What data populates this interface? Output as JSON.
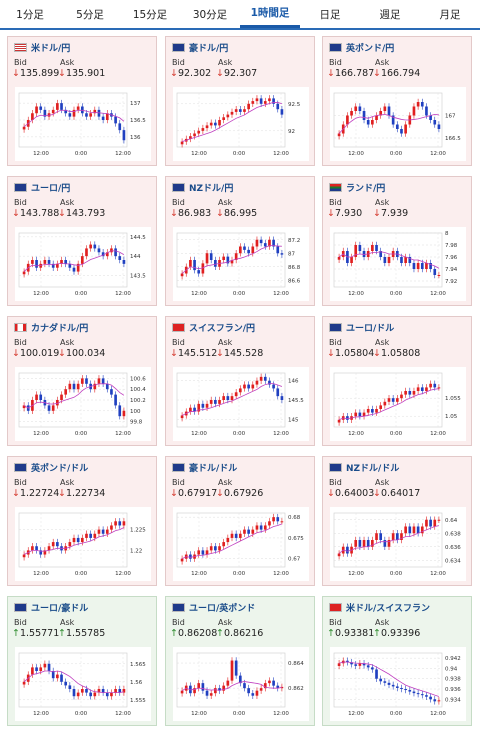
{
  "tabs": [
    {
      "label": "1分足"
    },
    {
      "label": "5分足"
    },
    {
      "label": "15分足"
    },
    {
      "label": "30分足"
    },
    {
      "label": "1時間足",
      "active": true
    },
    {
      "label": "日足"
    },
    {
      "label": "週足"
    },
    {
      "label": "月足"
    }
  ],
  "bid_label": "Bid",
  "ask_label": "Ask",
  "colors": {
    "down": "#d43a2f",
    "up": "#2c8b2c",
    "bull_candle": "#e02020",
    "bear_candle": "#2040c0",
    "ma_line": "#c040c0"
  },
  "pairs": [
    {
      "name": "米ドル/円",
      "dir": "down",
      "bid": "135.899",
      "ask": "135.901",
      "flag": "us-flag",
      "yticks": [
        "137",
        "136.5",
        "136"
      ],
      "yrange": [
        135.7,
        137.3
      ],
      "closes": [
        136.3,
        136.5,
        136.7,
        136.9,
        136.8,
        136.6,
        136.7,
        136.8,
        137.0,
        136.8,
        136.7,
        136.6,
        136.8,
        136.9,
        136.7,
        136.6,
        136.7,
        136.8,
        136.6,
        136.5,
        136.7,
        136.6,
        136.4,
        136.2,
        135.9
      ]
    },
    {
      "name": "豪ドル/円",
      "dir": "down",
      "bid": "92.302",
      "ask": "92.307",
      "flag": "au-flag",
      "yticks": [
        "92.5",
        "92"
      ],
      "yrange": [
        91.7,
        92.7
      ],
      "closes": [
        91.8,
        91.85,
        91.9,
        91.95,
        92.0,
        92.05,
        92.1,
        92.15,
        92.1,
        92.2,
        92.25,
        92.3,
        92.35,
        92.4,
        92.35,
        92.4,
        92.5,
        92.55,
        92.6,
        92.5,
        92.55,
        92.6,
        92.5,
        92.4,
        92.3
      ]
    },
    {
      "name": "英ポンド/円",
      "dir": "down",
      "bid": "166.787",
      "ask": "166.794",
      "flag": "gb-flag",
      "yticks": [
        "167",
        "166.5"
      ],
      "yrange": [
        166.3,
        167.5
      ],
      "closes": [
        166.6,
        166.8,
        167.0,
        167.1,
        167.2,
        167.1,
        166.9,
        166.8,
        166.9,
        167.0,
        167.1,
        167.2,
        167.0,
        166.8,
        166.7,
        166.6,
        166.8,
        167.0,
        167.2,
        167.3,
        167.2,
        167.0,
        166.9,
        166.8,
        166.7
      ]
    },
    {
      "name": "ユーロ/円",
      "dir": "down",
      "bid": "143.788",
      "ask": "143.793",
      "flag": "eu-flag",
      "yticks": [
        "144.5",
        "144",
        "143.5"
      ],
      "yrange": [
        143.2,
        144.6
      ],
      "closes": [
        143.6,
        143.8,
        143.9,
        143.7,
        143.8,
        143.9,
        143.8,
        143.7,
        143.8,
        143.9,
        143.8,
        143.7,
        143.6,
        143.8,
        144.0,
        144.2,
        144.3,
        144.2,
        144.1,
        144.0,
        144.1,
        144.2,
        144.0,
        143.9,
        143.8
      ]
    },
    {
      "name": "NZドル/円",
      "dir": "down",
      "bid": "86.983",
      "ask": "86.995",
      "flag": "nz-flag",
      "yticks": [
        "87.2",
        "87",
        "86.8",
        "86.6"
      ],
      "yrange": [
        86.5,
        87.3
      ],
      "closes": [
        86.7,
        86.8,
        86.9,
        86.75,
        86.7,
        86.85,
        87.0,
        86.9,
        86.8,
        86.9,
        86.95,
        86.85,
        86.9,
        87.0,
        87.1,
        87.05,
        87.0,
        87.1,
        87.2,
        87.15,
        87.1,
        87.2,
        87.1,
        87.0,
        86.98
      ]
    },
    {
      "name": "ランド/円",
      "dir": "down",
      "bid": "7.930",
      "ask": "7.939",
      "flag": "za-flag",
      "yticks": [
        "8",
        "7.98",
        "7.96",
        "7.94",
        "7.92"
      ],
      "yrange": [
        7.91,
        8.0
      ],
      "closes": [
        7.96,
        7.97,
        7.95,
        7.96,
        7.98,
        7.97,
        7.96,
        7.97,
        7.98,
        7.97,
        7.96,
        7.95,
        7.96,
        7.97,
        7.96,
        7.95,
        7.96,
        7.95,
        7.94,
        7.95,
        7.94,
        7.95,
        7.94,
        7.93,
        7.93
      ]
    },
    {
      "name": "カナダドル/円",
      "dir": "down",
      "bid": "100.019",
      "ask": "100.034",
      "flag": "ca-flag",
      "yticks": [
        "100.6",
        "100.4",
        "100.2",
        "100",
        "99.8"
      ],
      "yrange": [
        99.7,
        100.7
      ],
      "closes": [
        100.1,
        100.0,
        100.2,
        100.3,
        100.2,
        100.1,
        100.0,
        100.1,
        100.2,
        100.3,
        100.4,
        100.5,
        100.4,
        100.5,
        100.6,
        100.5,
        100.4,
        100.5,
        100.6,
        100.5,
        100.4,
        100.3,
        100.1,
        99.9,
        100.0
      ]
    },
    {
      "name": "スイスフラン/円",
      "dir": "down",
      "bid": "145.512",
      "ask": "145.528",
      "flag": "ch-flag",
      "yticks": [
        "146",
        "145.5",
        "145"
      ],
      "yrange": [
        144.8,
        146.2
      ],
      "closes": [
        145.1,
        145.2,
        145.3,
        145.2,
        145.4,
        145.3,
        145.4,
        145.5,
        145.4,
        145.5,
        145.6,
        145.5,
        145.6,
        145.7,
        145.8,
        145.9,
        145.8,
        145.9,
        146.0,
        146.1,
        146.0,
        145.9,
        145.8,
        145.6,
        145.5
      ]
    },
    {
      "name": "ユーロ/ドル",
      "dir": "down",
      "bid": "1.05804",
      "ask": "1.05808",
      "flag": "eu-flag",
      "yticks": [
        "1.055",
        "1.05"
      ],
      "yrange": [
        1.047,
        1.062
      ],
      "closes": [
        1.049,
        1.05,
        1.049,
        1.05,
        1.051,
        1.05,
        1.051,
        1.052,
        1.051,
        1.052,
        1.053,
        1.054,
        1.055,
        1.054,
        1.055,
        1.056,
        1.057,
        1.056,
        1.057,
        1.058,
        1.057,
        1.058,
        1.059,
        1.058,
        1.058
      ]
    },
    {
      "name": "英ポンド/ドル",
      "dir": "down",
      "bid": "1.22724",
      "ask": "1.22734",
      "flag": "gb-flag",
      "yticks": [
        "1.225",
        "1.22"
      ],
      "yrange": [
        1.216,
        1.229
      ],
      "closes": [
        1.219,
        1.22,
        1.221,
        1.22,
        1.219,
        1.22,
        1.221,
        1.222,
        1.221,
        1.22,
        1.221,
        1.222,
        1.223,
        1.222,
        1.223,
        1.224,
        1.223,
        1.224,
        1.225,
        1.224,
        1.225,
        1.226,
        1.227,
        1.226,
        1.227
      ]
    },
    {
      "name": "豪ドル/ドル",
      "dir": "down",
      "bid": "0.67917",
      "ask": "0.67926",
      "flag": "au-flag",
      "yticks": [
        "0.68",
        "0.675",
        "0.67"
      ],
      "yrange": [
        0.668,
        0.681
      ],
      "closes": [
        0.67,
        0.671,
        0.67,
        0.671,
        0.672,
        0.671,
        0.672,
        0.673,
        0.672,
        0.673,
        0.674,
        0.675,
        0.676,
        0.675,
        0.676,
        0.677,
        0.676,
        0.677,
        0.678,
        0.677,
        0.678,
        0.679,
        0.68,
        0.679,
        0.679
      ]
    },
    {
      "name": "NZドル/ドル",
      "dir": "down",
      "bid": "0.64003",
      "ask": "0.64017",
      "flag": "nz-flag",
      "yticks": [
        "0.64",
        "0.638",
        "0.636",
        "0.634"
      ],
      "yrange": [
        0.633,
        0.641
      ],
      "closes": [
        0.635,
        0.636,
        0.635,
        0.636,
        0.637,
        0.636,
        0.637,
        0.636,
        0.637,
        0.638,
        0.637,
        0.636,
        0.637,
        0.638,
        0.637,
        0.638,
        0.639,
        0.638,
        0.639,
        0.638,
        0.639,
        0.64,
        0.639,
        0.64,
        0.64
      ]
    },
    {
      "name": "ユーロ/豪ドル",
      "dir": "up",
      "bid": "1.55771",
      "ask": "1.55785",
      "flag": "eu-flag",
      "yticks": [
        "1.565",
        "1.56",
        "1.555"
      ],
      "yrange": [
        1.553,
        1.568
      ],
      "closes": [
        1.56,
        1.562,
        1.564,
        1.563,
        1.564,
        1.565,
        1.563,
        1.561,
        1.562,
        1.56,
        1.559,
        1.558,
        1.556,
        1.557,
        1.558,
        1.557,
        1.556,
        1.557,
        1.558,
        1.557,
        1.556,
        1.557,
        1.558,
        1.557,
        1.558
      ]
    },
    {
      "name": "ユーロ/英ポンド",
      "dir": "up",
      "bid": "0.86208",
      "ask": "0.86216",
      "flag": "eu-flag",
      "yticks": [
        "0.864",
        "0.862"
      ],
      "yrange": [
        0.8605,
        0.8648
      ],
      "closes": [
        0.8618,
        0.8622,
        0.8616,
        0.862,
        0.8624,
        0.8618,
        0.8614,
        0.8616,
        0.862,
        0.8618,
        0.8622,
        0.8626,
        0.8642,
        0.863,
        0.8624,
        0.862,
        0.8616,
        0.8614,
        0.8618,
        0.862,
        0.8624,
        0.8626,
        0.8622,
        0.862,
        0.8621
      ]
    },
    {
      "name": "米ドル/スイスフラン",
      "dir": "up",
      "bid": "0.93381",
      "ask": "0.93396",
      "flag": "ch-flag",
      "yticks": [
        "0.942",
        "0.94",
        "0.938",
        "0.936",
        "0.934"
      ],
      "yrange": [
        0.9325,
        0.943
      ],
      "closes": [
        0.941,
        0.9415,
        0.9412,
        0.9408,
        0.9405,
        0.941,
        0.9406,
        0.9402,
        0.9398,
        0.938,
        0.9375,
        0.9372,
        0.9368,
        0.9365,
        0.9362,
        0.936,
        0.9358,
        0.9355,
        0.9352,
        0.935,
        0.9348,
        0.9345,
        0.934,
        0.9336,
        0.9338
      ]
    }
  ],
  "xticks": [
    "12:00",
    "0:00",
    "12:00"
  ]
}
